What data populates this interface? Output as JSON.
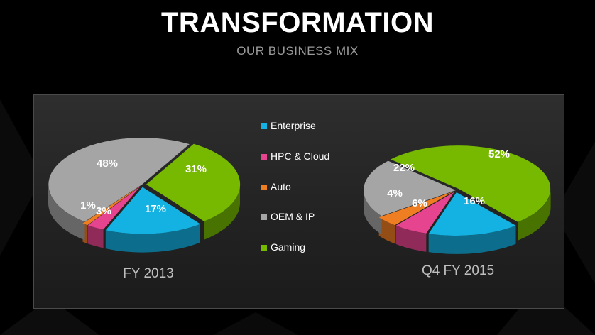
{
  "title": "TRANSFORMATION",
  "subtitle": "OUR BUSINESS MIX",
  "colors": {
    "Enterprise": "#14b2e2",
    "HPC & Cloud": "#e6448f",
    "Auto": "#ef7d22",
    "OEM & IP": "#a5a5a5",
    "Gaming": "#76b900"
  },
  "legend": [
    "Enterprise",
    "HPC & Cloud",
    "Auto",
    "OEM & IP",
    "Gaming"
  ],
  "chart_data": [
    {
      "type": "pie",
      "title": "FY 2013",
      "slices": [
        {
          "name": "Enterprise",
          "value": 17,
          "label": "17%"
        },
        {
          "name": "HPC & Cloud",
          "value": 3,
          "label": "3%"
        },
        {
          "name": "Auto",
          "value": 1,
          "label": "1%"
        },
        {
          "name": "OEM & IP",
          "value": 48,
          "label": "48%"
        },
        {
          "name": "Gaming",
          "value": 31,
          "label": "31%"
        }
      ]
    },
    {
      "type": "pie",
      "title": "Q4 FY 2015",
      "slices": [
        {
          "name": "Enterprise",
          "value": 16,
          "label": "16%"
        },
        {
          "name": "HPC & Cloud",
          "value": 6,
          "label": "6%"
        },
        {
          "name": "Auto",
          "value": 4,
          "label": "4%"
        },
        {
          "name": "OEM & IP",
          "value": 22,
          "label": "22%"
        },
        {
          "name": "Gaming",
          "value": 52,
          "label": "52%"
        }
      ]
    }
  ]
}
